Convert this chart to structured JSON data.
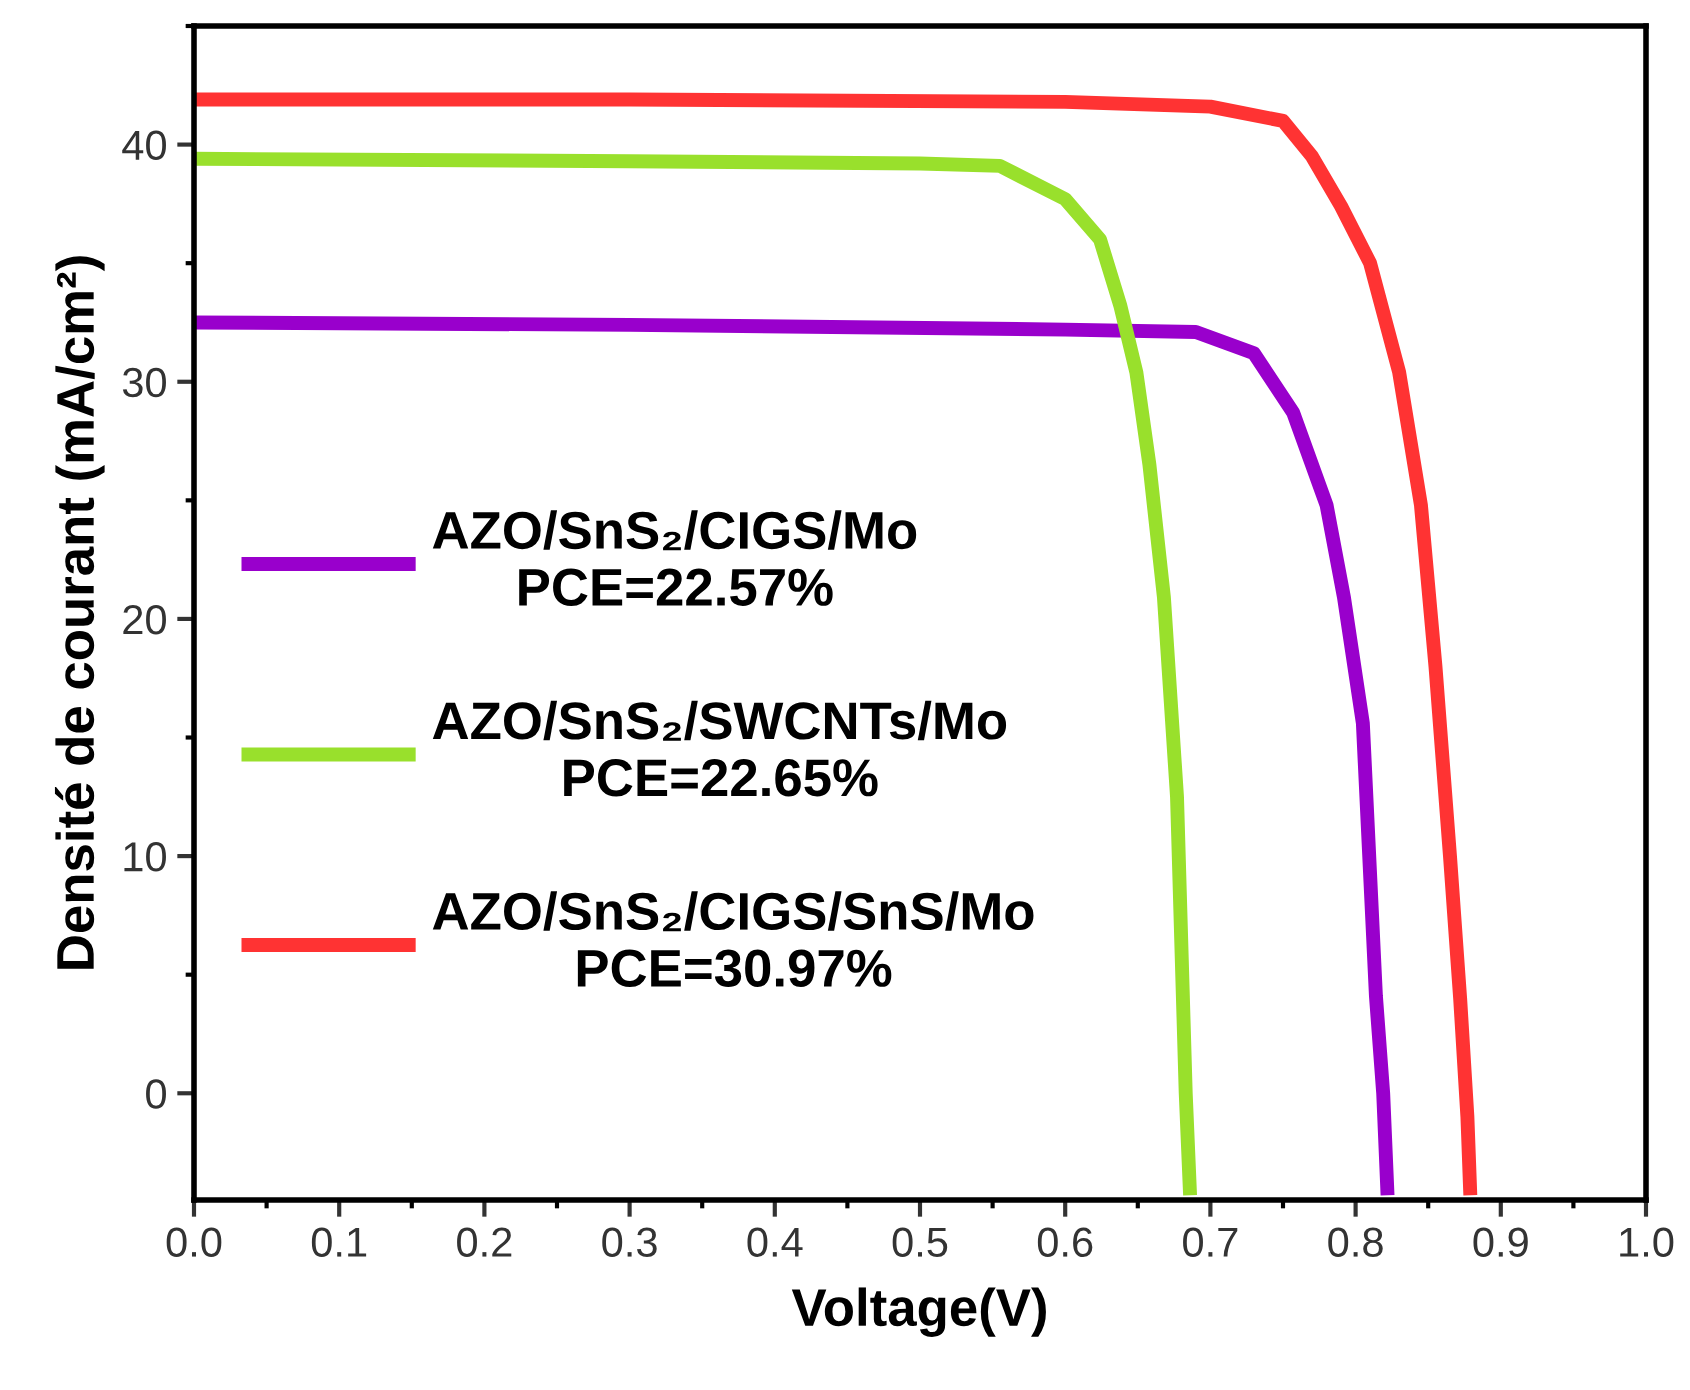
{
  "chart_data": {
    "type": "line",
    "xlabel": "Voltage(V)",
    "ylabel": "Densité de courant (mA/cm²)",
    "xlim": [
      0.0,
      1.0
    ],
    "xticks": [
      {
        "value": 0.0,
        "label": "0.0"
      },
      0.1,
      0.2,
      0.3,
      0.4,
      0.5,
      0.6,
      0.7,
      0.8,
      0.9,
      {
        "value": 1.0,
        "label": "1.0"
      }
    ],
    "ylim": [
      -4.5,
      45
    ],
    "yticks": [
      0,
      10,
      20,
      30,
      40
    ],
    "grid": false,
    "legend": "left",
    "marker": "none",
    "line_style": "solid",
    "series": [
      {
        "name": "AZO/SnS₂/CIGS/Mo\nPCE=22.57%",
        "color": "#9900cc",
        "x": [
          0,
          0.3,
          0.6,
          0.69,
          0.73,
          0.757,
          0.78,
          0.792,
          0.805,
          0.814,
          0.819,
          0.822
        ],
        "values": [
          32.5,
          32.4,
          32.2,
          32.1,
          31.2,
          28.7,
          24.8,
          20.9,
          15.6,
          4.1,
          0,
          -4.3
        ]
      },
      {
        "name": "AZO/SnS₂/SWCNTs/Mo\nPCE=22.65%",
        "color": "#99e02c",
        "x": [
          0,
          0.3,
          0.5,
          0.555,
          0.6,
          0.624,
          0.638,
          0.649,
          0.658,
          0.668,
          0.677,
          0.683,
          0.686
        ],
        "values": [
          39.4,
          39.3,
          39.2,
          39.1,
          37.7,
          36.0,
          33.2,
          30.4,
          26.5,
          20.9,
          12.5,
          0,
          -4.3
        ]
      },
      {
        "name": "AZO/SnS₂/CIGS/SnS/Mo\nPCE=30.97%",
        "color": "#ff3333",
        "x": [
          0,
          0.3,
          0.6,
          0.7,
          0.75,
          0.77,
          0.79,
          0.81,
          0.83,
          0.845,
          0.855,
          0.865,
          0.872,
          0.877,
          0.879
        ],
        "values": [
          41.9,
          41.9,
          41.8,
          41.6,
          41.0,
          39.5,
          37.4,
          35.0,
          30.4,
          24.8,
          18,
          10,
          4,
          -1,
          -4.3
        ]
      }
    ]
  }
}
